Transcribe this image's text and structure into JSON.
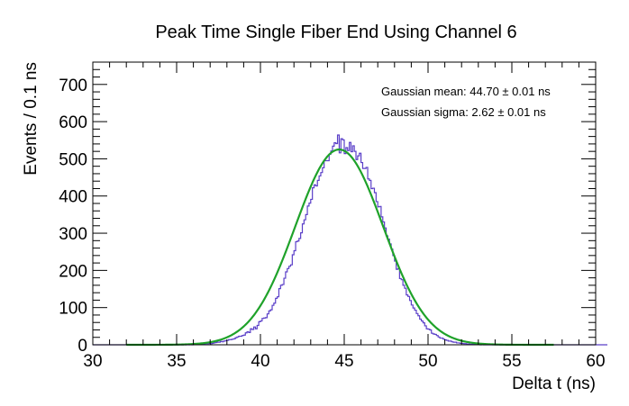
{
  "chart_data": {
    "type": "line",
    "title": "Peak Time Single Fiber End Using Channel 6",
    "xlabel": "Delta t (ns)",
    "ylabel": "Events / 0.1 ns",
    "xlim": [
      30,
      60
    ],
    "ylim": [
      0,
      760
    ],
    "x_major_ticks": [
      30,
      35,
      40,
      45,
      50,
      55,
      60
    ],
    "x_tick_labels": [
      "30",
      "35",
      "40",
      "45",
      "50",
      "55",
      "60"
    ],
    "y_major_ticks": [
      0,
      100,
      200,
      300,
      400,
      500,
      600,
      700
    ],
    "y_tick_labels": [
      "0",
      "100",
      "200",
      "300",
      "400",
      "500",
      "600",
      "700"
    ],
    "grid": false,
    "legend": false,
    "bin_width": 0.1,
    "fit": {
      "function": "gaussian",
      "amplitude": 525,
      "mean": 44.7,
      "sigma": 2.62
    },
    "series": [
      {
        "style": "histogram-step",
        "color": "#5a3fc8",
        "x_start": 30.0,
        "bin_width": 0.1,
        "values": [
          0,
          0,
          0,
          0,
          0,
          0,
          0,
          0,
          0,
          0,
          0,
          0,
          0,
          0,
          0,
          0,
          0,
          0,
          0,
          0,
          0,
          0,
          0,
          0,
          0,
          0,
          0,
          0,
          0,
          0,
          0,
          0,
          0,
          0,
          0,
          0,
          0,
          0,
          0,
          0,
          0,
          0,
          0,
          0,
          0,
          0,
          0,
          0,
          0,
          0,
          0,
          0,
          1,
          0,
          1,
          0,
          1,
          0,
          1,
          0,
          1,
          2,
          1,
          1,
          2,
          2,
          2,
          3,
          3,
          4,
          3,
          4,
          5,
          6,
          7,
          7,
          9,
          8,
          10,
          11,
          12,
          14,
          14,
          15,
          16,
          19,
          21,
          23,
          23,
          25,
          26,
          32,
          35,
          33,
          43,
          41,
          48,
          43,
          52,
          62,
          64,
          71,
          72,
          73,
          83,
          91,
          94,
          106,
          112,
          125,
          129,
          151,
          160,
          162,
          179,
          196,
          205,
          211,
          215,
          242,
          253,
          277,
          279,
          286,
          301,
          325,
          336,
          350,
          373,
          381,
          391,
          422,
          430,
          427,
          442,
          454,
          463,
          476,
          495,
          495,
          495,
          512,
          521,
          534,
          543,
          541,
          564,
          516,
          554,
          551,
          514,
          530,
          522,
          544,
          519,
          535,
          520,
          498,
          508,
          515,
          490,
          474,
          474,
          477,
          446,
          442,
          420,
          421,
          409,
          385,
          371,
          372,
          344,
          330,
          314,
          293,
          284,
          271,
          257,
          240,
          225,
          203,
          205,
          178,
          175,
          160,
          152,
          134,
          130,
          119,
          107,
          99,
          93,
          84,
          78,
          69,
          64,
          59,
          51,
          43,
          42,
          40,
          31,
          29,
          28,
          25,
          21,
          18,
          18,
          15,
          13,
          12,
          10,
          10,
          8,
          7,
          7,
          5,
          5,
          4,
          4,
          3,
          3,
          2,
          2,
          1,
          2,
          1,
          1,
          1,
          1,
          0,
          1,
          0,
          0,
          0,
          0,
          0,
          0,
          0,
          0,
          0,
          0,
          0,
          0,
          0,
          0,
          0,
          0,
          0,
          0,
          0,
          0,
          0,
          0,
          0,
          0,
          0,
          0,
          0,
          0,
          0,
          0,
          0,
          0,
          0,
          0,
          0,
          0,
          0,
          0,
          0,
          0,
          0,
          0,
          0,
          0,
          0,
          0,
          0,
          0,
          0,
          0,
          0,
          0,
          0,
          0,
          0,
          0,
          0,
          0,
          0,
          0,
          0,
          0,
          0,
          0,
          0,
          0,
          0,
          0,
          0,
          0,
          0,
          0,
          0,
          0
        ]
      },
      {
        "style": "fit-curve",
        "color": "#1fa22a"
      }
    ],
    "annotations": [
      {
        "text": "Gaussian mean: 44.70 ± 0.01 ns",
        "position": "top-right"
      },
      {
        "text": "Gaussian sigma: 2.62 ± 0.01 ns",
        "position": "top-right"
      }
    ]
  }
}
